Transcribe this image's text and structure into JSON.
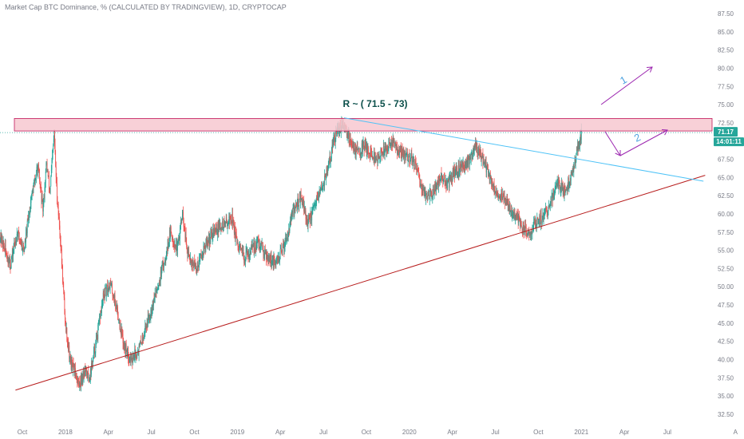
{
  "header": {
    "title": "Market Cap BTC Dominance, % (CALCULATED BY TRADINGVIEW), 1D, CRYPTOCAP"
  },
  "colors": {
    "up": "#26a69a",
    "down": "#ef5350",
    "resistance_fill": "#f7c8d0",
    "resistance_stroke": "#c2185b",
    "support_line": "#b71c1c",
    "down_trendline": "#4fc3f7",
    "arrow": "#9c27b0",
    "label_blue": "#4fa3e0",
    "label_green": "#0b4f4a",
    "price_tag": "#26a69a",
    "price_line": "#26a69a"
  },
  "annotation": {
    "resistance_label": "R ~ ( 71.5 - 73)",
    "scenario_1": "1",
    "scenario_2": "2"
  },
  "price_tag": {
    "value": "71.17",
    "countdown": "14:01:11"
  },
  "scale_mode": "A",
  "chart_data": {
    "type": "candlestick",
    "title": "Market Cap BTC Dominance, % (CALCULATED BY TRADINGVIEW), 1D, CRYPTOCAP",
    "xlabel": "",
    "ylabel": "",
    "ylim": [
      31.5,
      88.5
    ],
    "yticks": [
      "87.50",
      "85.00",
      "82.50",
      "80.00",
      "77.50",
      "75.00",
      "72.50",
      "70.00",
      "67.50",
      "65.00",
      "62.50",
      "60.00",
      "57.50",
      "55.00",
      "52.50",
      "50.00",
      "47.50",
      "45.00",
      "42.50",
      "40.00",
      "37.50",
      "35.00",
      "32.50"
    ],
    "xticks": [
      {
        "label": "Oct",
        "t": 2017.75
      },
      {
        "label": "2018",
        "t": 2018.0
      },
      {
        "label": "Apr",
        "t": 2018.25
      },
      {
        "label": "Jul",
        "t": 2018.5
      },
      {
        "label": "Oct",
        "t": 2018.75
      },
      {
        "label": "2019",
        "t": 2019.0
      },
      {
        "label": "Apr",
        "t": 2019.25
      },
      {
        "label": "Jul",
        "t": 2019.5
      },
      {
        "label": "Oct",
        "t": 2019.75
      },
      {
        "label": "2020",
        "t": 2020.0
      },
      {
        "label": "Apr",
        "t": 2020.25
      },
      {
        "label": "Jul",
        "t": 2020.5
      },
      {
        "label": "Oct",
        "t": 2020.75
      },
      {
        "label": "2021",
        "t": 2021.0
      },
      {
        "label": "Apr",
        "t": 2021.25
      },
      {
        "label": "Jul",
        "t": 2021.5
      }
    ],
    "xlim": [
      2017.62,
      2021.76
    ],
    "series_path": [
      [
        2017.62,
        57.0
      ],
      [
        2017.68,
        53.0
      ],
      [
        2017.72,
        57.5
      ],
      [
        2017.76,
        55.0
      ],
      [
        2017.8,
        62.0
      ],
      [
        2017.84,
        66.5
      ],
      [
        2017.87,
        60.5
      ],
      [
        2017.89,
        67.0
      ],
      [
        2017.91,
        63.0
      ],
      [
        2017.935,
        71.0
      ],
      [
        2017.95,
        63.0
      ],
      [
        2017.97,
        57.0
      ],
      [
        2018.0,
        45.0
      ],
      [
        2018.03,
        39.5
      ],
      [
        2018.06,
        38.0
      ],
      [
        2018.08,
        36.5
      ],
      [
        2018.11,
        38.5
      ],
      [
        2018.14,
        37.5
      ],
      [
        2018.18,
        42.5
      ],
      [
        2018.22,
        48.5
      ],
      [
        2018.26,
        50.5
      ],
      [
        2018.3,
        47.0
      ],
      [
        2018.34,
        42.0
      ],
      [
        2018.38,
        40.0
      ],
      [
        2018.43,
        41.5
      ],
      [
        2018.48,
        45.5
      ],
      [
        2018.53,
        49.5
      ],
      [
        2018.57,
        53.0
      ],
      [
        2018.61,
        57.5
      ],
      [
        2018.65,
        55.0
      ],
      [
        2018.68,
        60.0
      ],
      [
        2018.71,
        54.5
      ],
      [
        2018.76,
        52.5
      ],
      [
        2018.81,
        55.5
      ],
      [
        2018.86,
        57.5
      ],
      [
        2018.92,
        58.5
      ],
      [
        2018.97,
        59.5
      ],
      [
        2019.0,
        55.5
      ],
      [
        2019.04,
        54.0
      ],
      [
        2019.08,
        55.0
      ],
      [
        2019.12,
        56.0
      ],
      [
        2019.17,
        54.5
      ],
      [
        2019.22,
        53.0
      ],
      [
        2019.27,
        55.5
      ],
      [
        2019.32,
        60.0
      ],
      [
        2019.37,
        62.5
      ],
      [
        2019.41,
        58.5
      ],
      [
        2019.45,
        61.0
      ],
      [
        2019.49,
        63.5
      ],
      [
        2019.53,
        66.5
      ],
      [
        2019.56,
        70.0
      ],
      [
        2019.59,
        71.5
      ],
      [
        2019.62,
        72.5
      ],
      [
        2019.65,
        70.5
      ],
      [
        2019.68,
        69.0
      ],
      [
        2019.71,
        68.5
      ],
      [
        2019.74,
        69.5
      ],
      [
        2019.78,
        68.0
      ],
      [
        2019.82,
        67.5
      ],
      [
        2019.86,
        69.0
      ],
      [
        2019.9,
        70.0
      ],
      [
        2019.94,
        68.5
      ],
      [
        2019.98,
        68.0
      ],
      [
        2020.02,
        67.5
      ],
      [
        2020.06,
        64.5
      ],
      [
        2020.1,
        62.5
      ],
      [
        2020.14,
        63.0
      ],
      [
        2020.18,
        65.0
      ],
      [
        2020.22,
        64.0
      ],
      [
        2020.26,
        65.5
      ],
      [
        2020.3,
        66.5
      ],
      [
        2020.34,
        67.0
      ],
      [
        2020.38,
        69.5
      ],
      [
        2020.42,
        68.0
      ],
      [
        2020.46,
        65.5
      ],
      [
        2020.5,
        63.0
      ],
      [
        2020.54,
        62.5
      ],
      [
        2020.58,
        61.0
      ],
      [
        2020.62,
        59.5
      ],
      [
        2020.66,
        58.0
      ],
      [
        2020.7,
        57.5
      ],
      [
        2020.74,
        59.0
      ],
      [
        2020.78,
        59.5
      ],
      [
        2020.82,
        61.5
      ],
      [
        2020.86,
        64.5
      ],
      [
        2020.9,
        63.0
      ],
      [
        2020.94,
        65.0
      ],
      [
        2020.97,
        68.0
      ],
      [
        2021.0,
        71.2
      ]
    ],
    "annotations": {
      "resistance_zone": [
        71.5,
        73.0
      ],
      "current_price": 71.17,
      "support_line": [
        [
          2017.71,
          35.8
        ],
        [
          2021.72,
          65.3
        ]
      ],
      "down_trendline": [
        [
          2019.62,
          73.2
        ],
        [
          2021.71,
          64.5
        ]
      ]
    }
  }
}
